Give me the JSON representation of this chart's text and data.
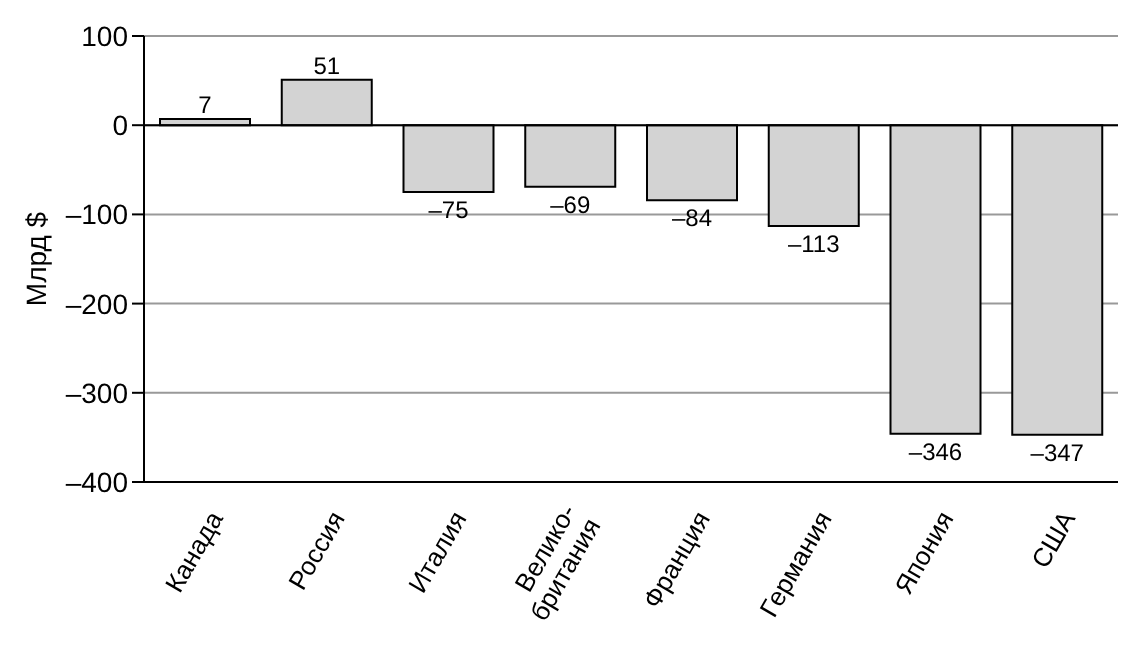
{
  "chart_data": {
    "type": "bar",
    "ylabel": "Млрд $",
    "categories": [
      "Канада",
      "Россия",
      "Италия",
      "Велико-\nбритания",
      "Франция",
      "Германия",
      "Япония",
      "США"
    ],
    "values": [
      7,
      51,
      -75,
      -69,
      -84,
      -113,
      -346,
      -347
    ],
    "value_labels": [
      "7",
      "51",
      "–75",
      "–69",
      "–84",
      "–113",
      "–346",
      "–347"
    ],
    "color": "#d3d3d3",
    "ylim": [
      -400,
      100
    ],
    "yticks": [
      100,
      0,
      {
        "value": -100,
        "label": "–100"
      },
      {
        "value": -200,
        "label": "–200"
      },
      {
        "value": -300,
        "label": "–300"
      },
      {
        "value": -400,
        "label": "–400"
      }
    ],
    "grid": "y"
  }
}
